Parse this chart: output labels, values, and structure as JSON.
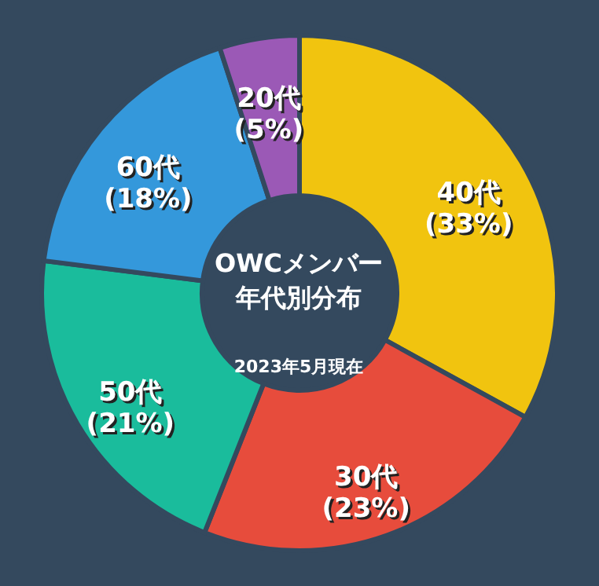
{
  "chart_data": {
    "type": "donut",
    "title": "OWCメンバー年代別分布",
    "subtitle": "2023年5月現在",
    "categories": [
      "40代",
      "30代",
      "50代",
      "60代",
      "20代"
    ],
    "values": [
      33,
      23,
      21,
      18,
      5
    ],
    "value_labels": [
      "(33%)",
      "(23%)",
      "(21%)",
      "(18%)",
      "(5%)"
    ],
    "colors": [
      "#f1c40f",
      "#e74c3c",
      "#1abc9c",
      "#3498db",
      "#9b59b6"
    ]
  }
}
